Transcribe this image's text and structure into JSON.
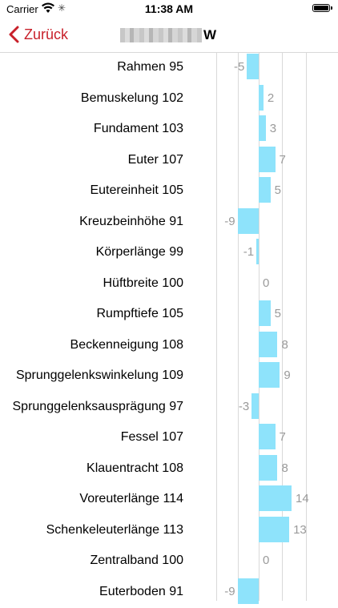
{
  "status_bar": {
    "carrier": "Carrier",
    "time": "11:38 AM"
  },
  "nav": {
    "back_label": "Zurück",
    "title_suffix": "W"
  },
  "chart_data": {
    "type": "bar",
    "orientation": "horizontal",
    "categories": [
      "Rahmen 95",
      "Bemuskelung 102",
      "Fundament 103",
      "Euter 107",
      "Eutereinheit 105",
      "Kreuzbeinhöhe 91",
      "Körperlänge 99",
      "Hüftbreite 100",
      "Rumpftiefe 105",
      "Beckenneigung 108",
      "Sprunggelenkswinkelung 109",
      "Sprunggelenksausprägung 97",
      "Fessel 107",
      "Klauentracht 108",
      "Voreuterlänge 114",
      "Schenkeleuterlänge 113",
      "Zentralband 100",
      "Euterboden 91"
    ],
    "values": [
      -5,
      2,
      3,
      7,
      5,
      -9,
      -1,
      0,
      5,
      8,
      9,
      -3,
      7,
      8,
      14,
      13,
      0,
      -9
    ],
    "grid": true,
    "bar_color": "#8ee3fb"
  }
}
